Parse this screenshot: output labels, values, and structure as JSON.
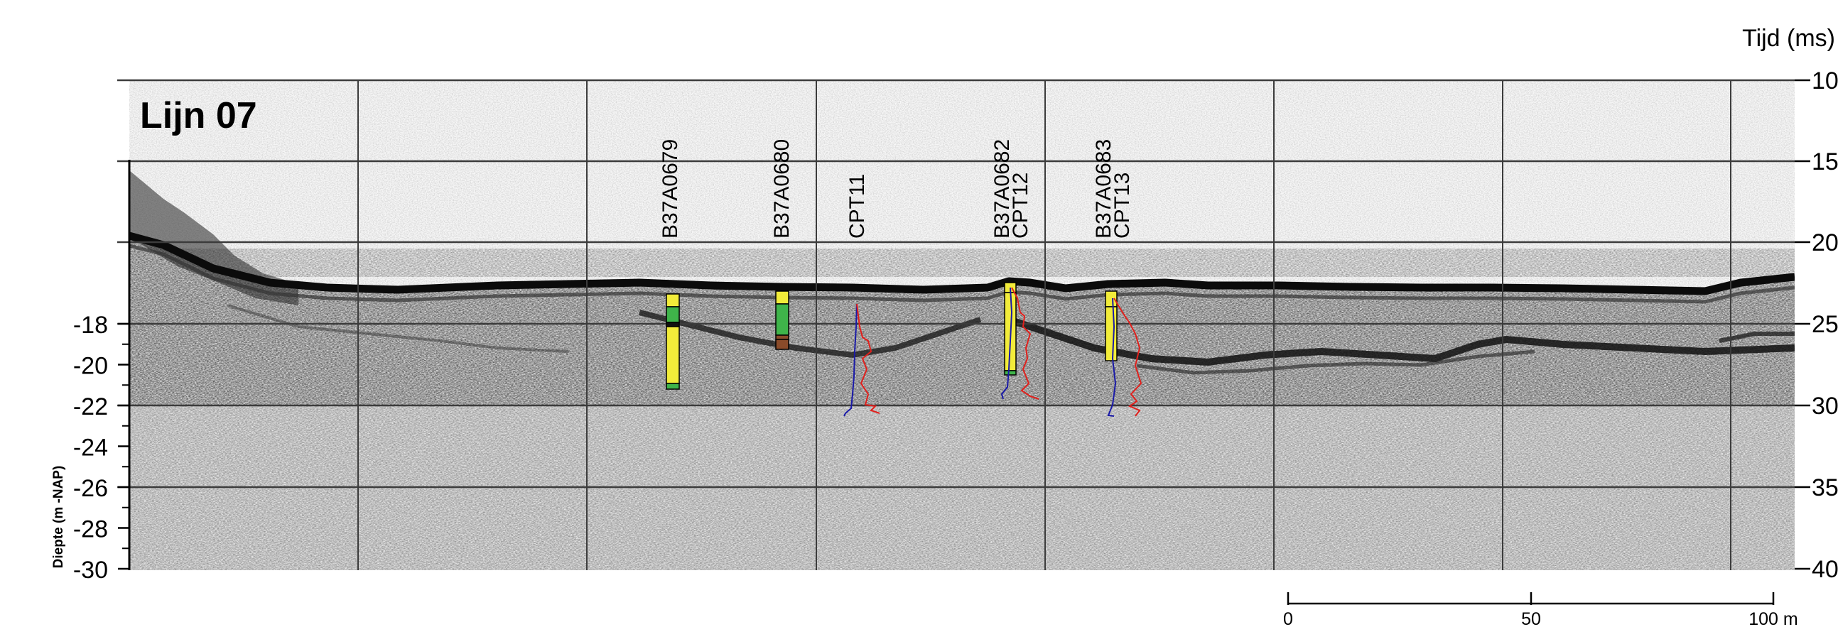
{
  "title": "Lijn 07",
  "time_axis": {
    "label": "Tijd (ms)",
    "ticks": [
      "10",
      "15",
      "20",
      "25",
      "30",
      "35",
      "40"
    ]
  },
  "depth_axis": {
    "label": "Diepte (m -NAP)",
    "ticks": [
      "-18",
      "-20",
      "-22",
      "-24",
      "-26",
      "-28",
      "-30"
    ]
  },
  "scale_bar": {
    "labels": [
      "0",
      "50",
      "100 m"
    ]
  },
  "boreholes": [
    {
      "name": "B37A0679",
      "highlight": false
    },
    {
      "name": "B37A0680",
      "highlight": true
    },
    {
      "name": "CPT11",
      "highlight": false
    },
    {
      "name": "B37A0682",
      "name2": "CPT12",
      "highlight": false
    },
    {
      "name": "B37A0683",
      "name2": "CPT13",
      "highlight": false
    }
  ],
  "colors": {
    "highlight_label": "#e0201c",
    "sand": "#f2ec3a",
    "clay": "#3fb44a",
    "peat": "#8a4b2a",
    "cone_resistance": "#e0201c",
    "friction": "#1a1aa8",
    "grid": "#3c3c3c"
  }
}
